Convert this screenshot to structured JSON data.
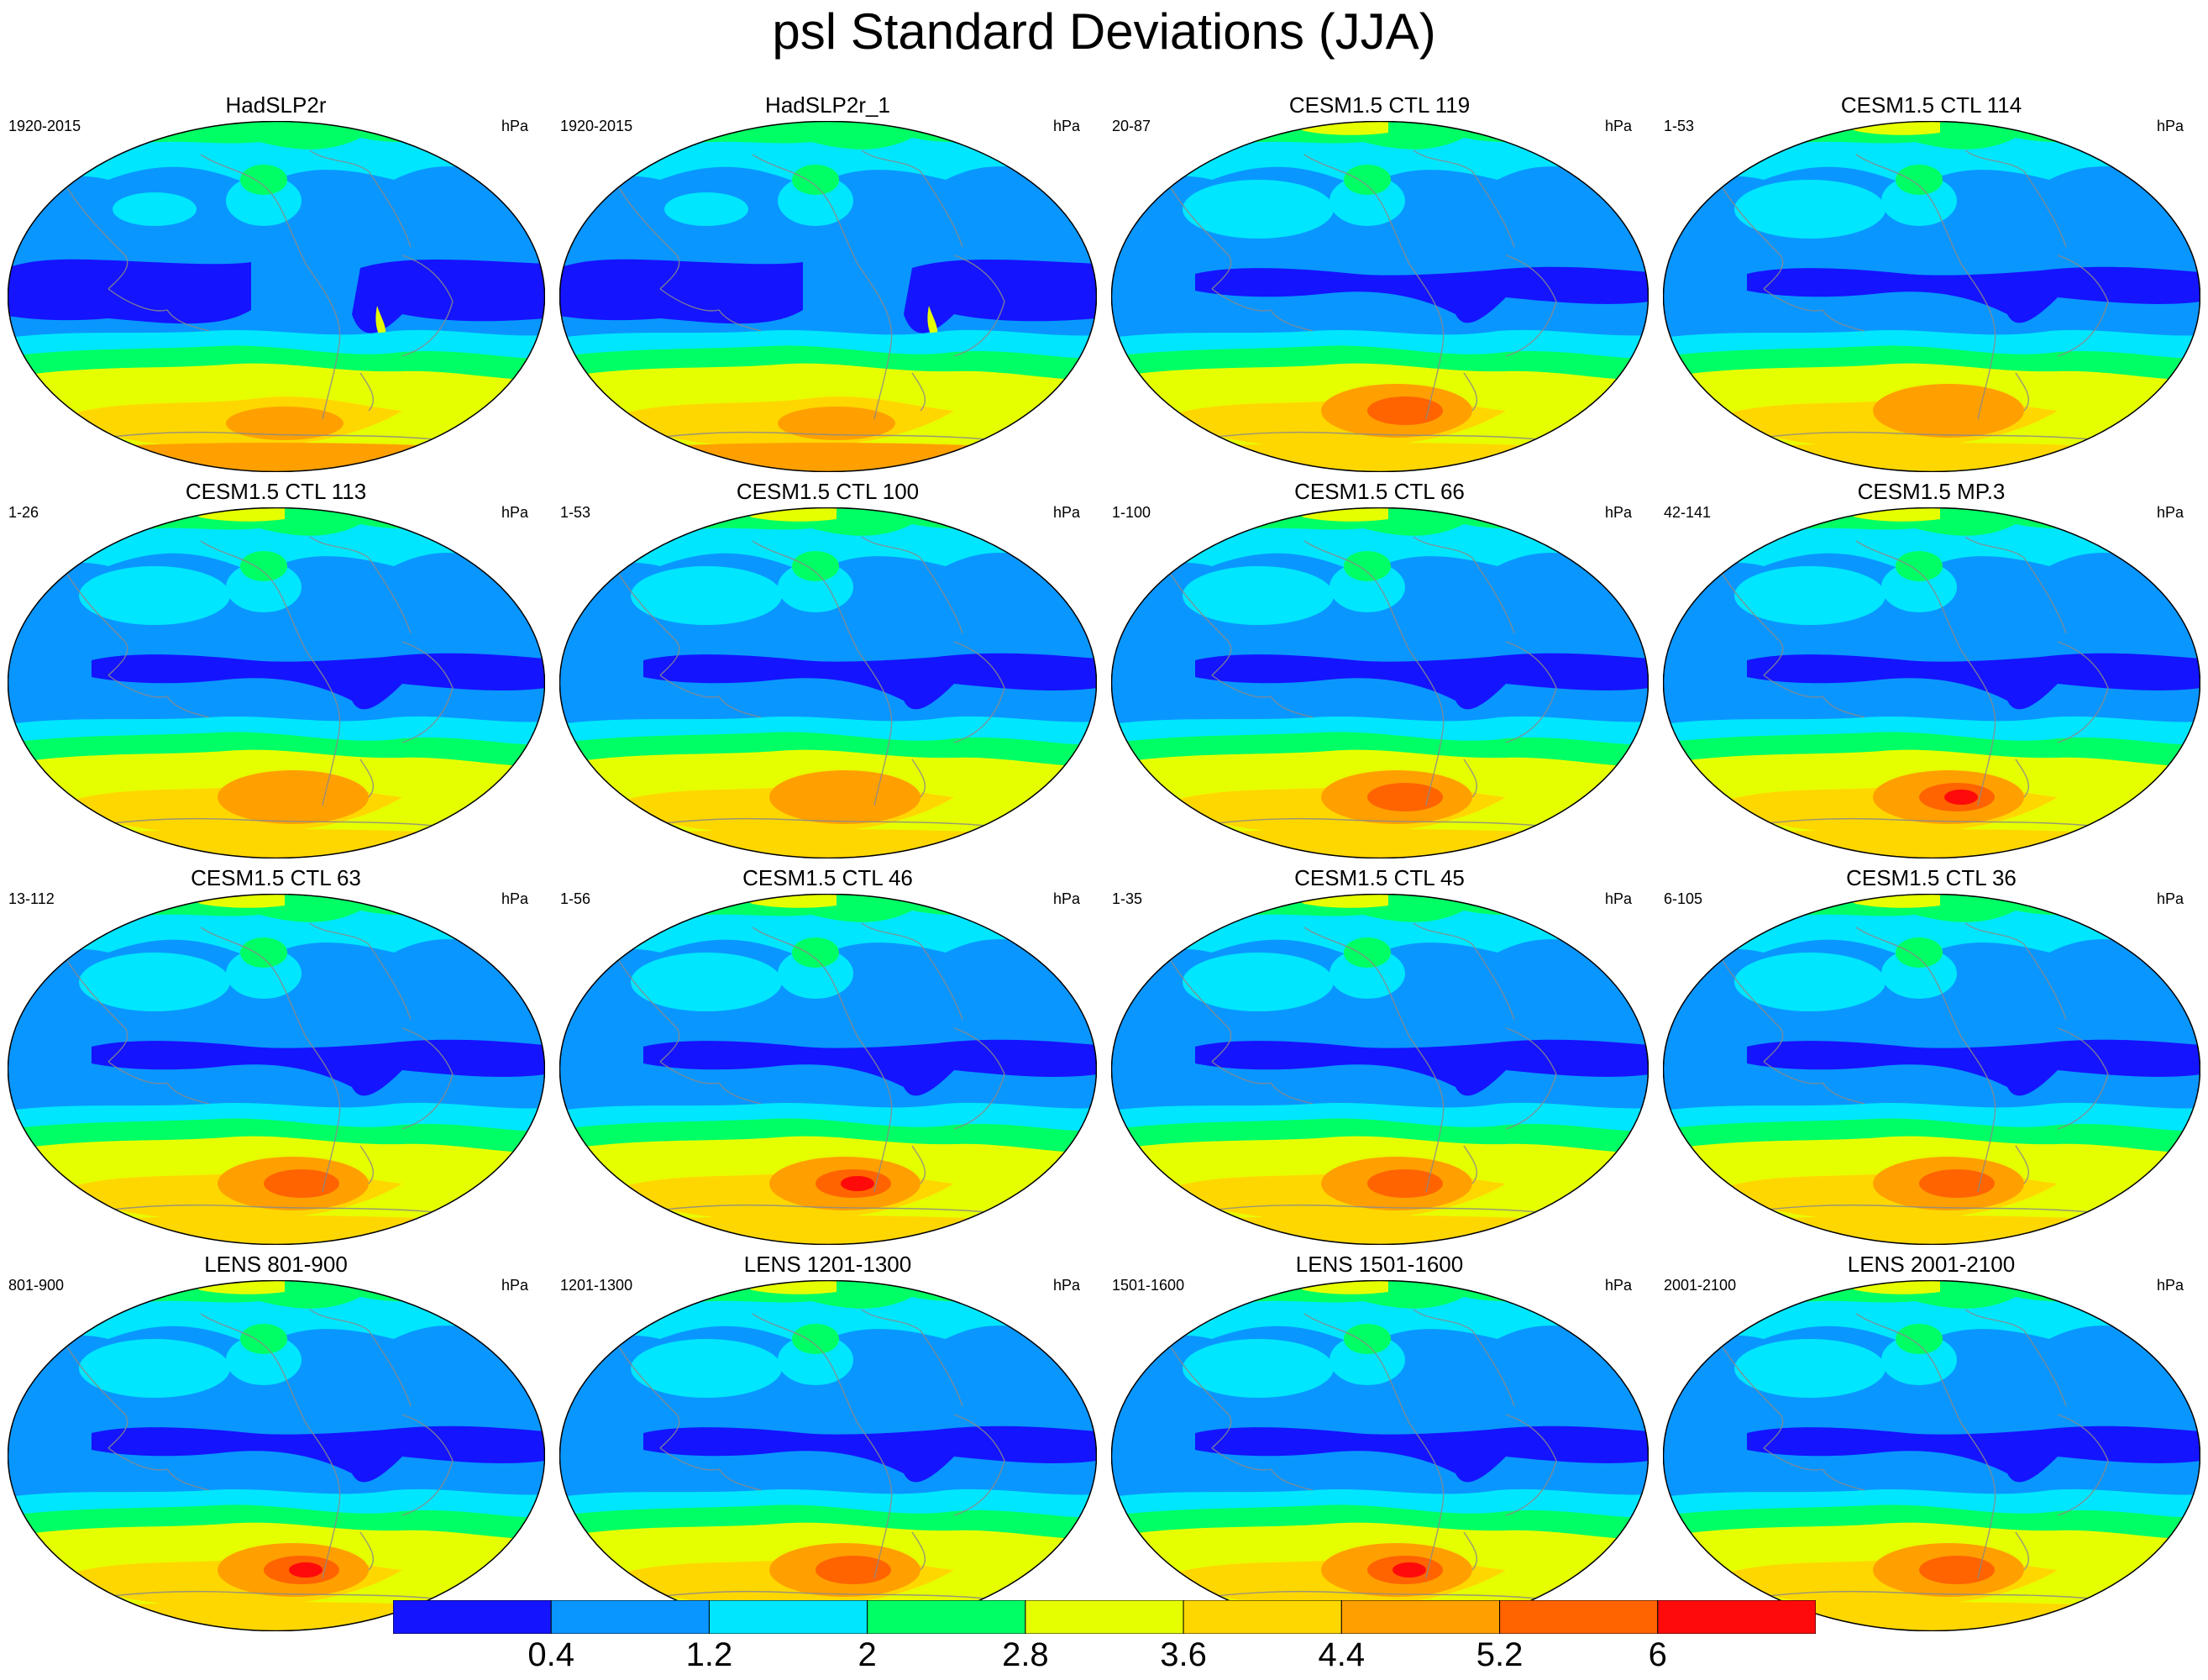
{
  "title": "psl Standard Deviations (JJA)",
  "units": "hPa",
  "panels": [
    {
      "title": "HadSLP2r",
      "years": "1920-2015",
      "type": "obs",
      "hot_spot": 0
    },
    {
      "title": "HadSLP2r_1",
      "years": "1920-2015",
      "type": "obs",
      "hot_spot": 0
    },
    {
      "title": "CESM1.5 CTL 119",
      "years": "20-87",
      "type": "model",
      "hot_spot": 1
    },
    {
      "title": "CESM1.5 CTL 114",
      "years": "1-53",
      "type": "model",
      "hot_spot": 0
    },
    {
      "title": "CESM1.5 CTL 113",
      "years": "1-26",
      "type": "model",
      "hot_spot": 0
    },
    {
      "title": "CESM1.5 CTL 100",
      "years": "1-53",
      "type": "model",
      "hot_spot": 0
    },
    {
      "title": "CESM1.5 CTL 66",
      "years": "1-100",
      "type": "model",
      "hot_spot": 1
    },
    {
      "title": "CESM1.5 MP.3",
      "years": "42-141",
      "type": "model",
      "hot_spot": 2
    },
    {
      "title": "CESM1.5 CTL 63",
      "years": "13-112",
      "type": "model",
      "hot_spot": 1
    },
    {
      "title": "CESM1.5 CTL 46",
      "years": "1-56",
      "type": "model",
      "hot_spot": 2
    },
    {
      "title": "CESM1.5 CTL 45",
      "years": "1-35",
      "type": "model",
      "hot_spot": 1
    },
    {
      "title": "CESM1.5 CTL 36",
      "years": "6-105",
      "type": "model",
      "hot_spot": 1
    },
    {
      "title": "LENS 801-900",
      "years": "801-900",
      "type": "model",
      "hot_spot": 2
    },
    {
      "title": "LENS 1201-1300",
      "years": "1201-1300",
      "type": "model",
      "hot_spot": 1
    },
    {
      "title": "LENS 1501-1600",
      "years": "1501-1600",
      "type": "model",
      "hot_spot": 2
    },
    {
      "title": "LENS 2001-2100",
      "years": "2001-2100",
      "type": "model",
      "hot_spot": 1
    }
  ],
  "colorbar": {
    "levels": [
      "0.4",
      "1.2",
      "2",
      "2.8",
      "3.6",
      "4.4",
      "5.2",
      "6"
    ],
    "colors": [
      "#1414ff",
      "#0a96ff",
      "#00e6ff",
      "#00ff64",
      "#e6ff00",
      "#ffd700",
      "#ffa000",
      "#ff6400",
      "#ff0a0a"
    ]
  }
}
